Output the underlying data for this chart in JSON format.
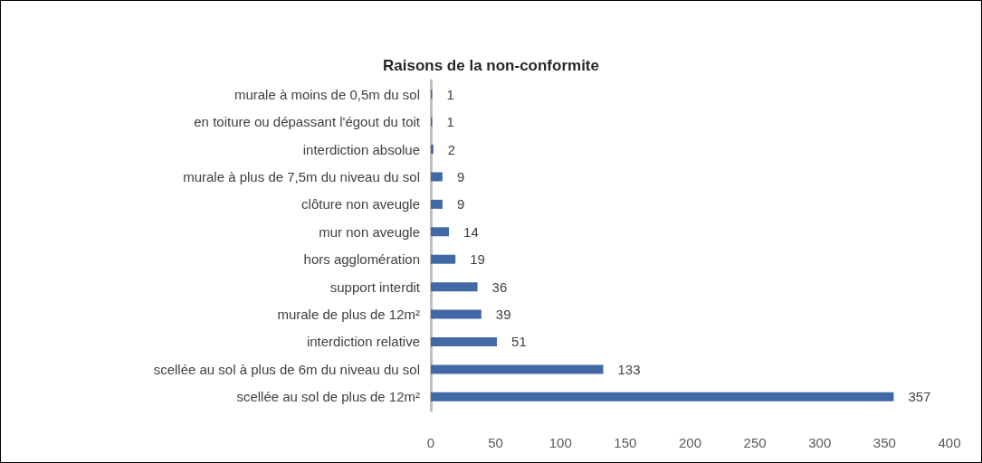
{
  "chart_data": {
    "type": "bar",
    "orientation": "horizontal",
    "title": "Raisons de la non-conformite",
    "categories": [
      "murale à moins de 0,5m du sol",
      "en toiture ou dépassant l'égout du toit",
      "interdiction absolue",
      "murale à plus de 7,5m du niveau du sol",
      "clôture non aveugle",
      "mur non aveugle",
      "hors agglomération",
      "support interdit",
      "murale de plus de 12m²",
      "interdiction relative",
      "scellée au sol à plus de 6m du niveau du sol",
      "scellée au sol de plus de 12m²"
    ],
    "values": [
      1,
      1,
      2,
      9,
      9,
      14,
      19,
      36,
      39,
      51,
      133,
      357
    ],
    "color": "#4169a5",
    "xlim": [
      0,
      400
    ],
    "xticks": [
      0,
      50,
      100,
      150,
      200,
      250,
      300,
      350,
      400
    ],
    "grid": false,
    "data_labels": true
  }
}
